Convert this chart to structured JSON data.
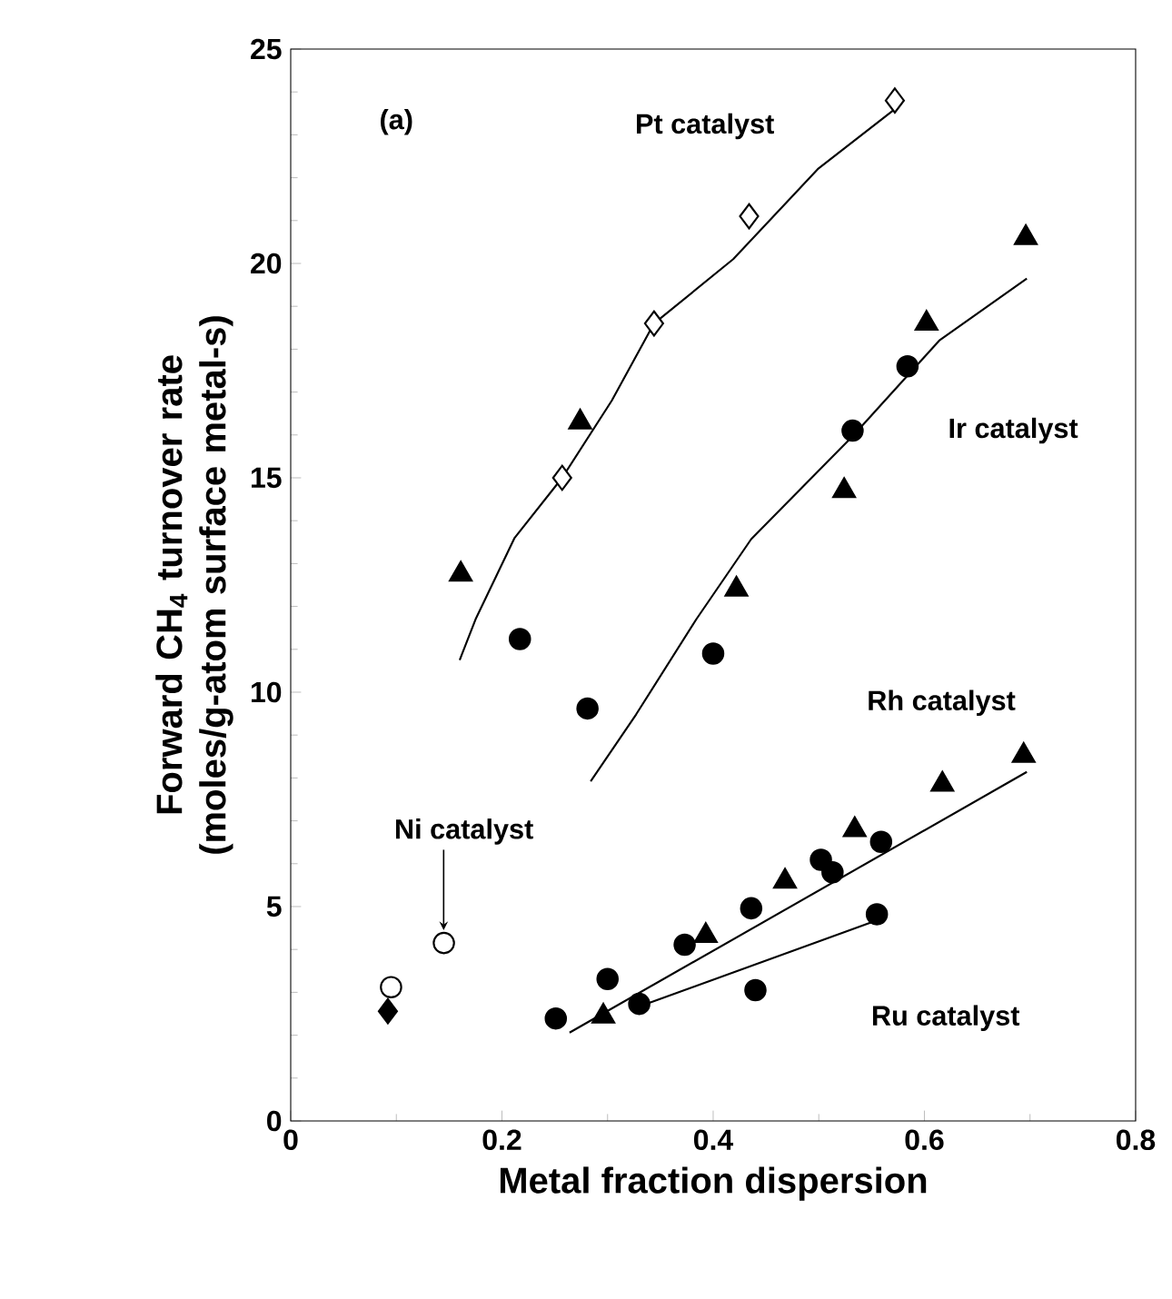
{
  "chart_data": {
    "type": "scatter",
    "xlabel": "Metal fraction dispersion",
    "ylabel": "Forward CH$_{4}$ turnover rate (moles/g-atom surface metal-s)",
    "xlim": [
      0,
      0.8
    ],
    "ylim": [
      0,
      25
    ],
    "xticks": [
      0,
      0.2,
      0.4,
      0.6,
      0.8
    ],
    "yticks": [
      0,
      5,
      10,
      15,
      20,
      25
    ],
    "series": [
      {
        "type": "line",
        "marker": "none",
        "color": "#000000",
        "x": [
          0.16,
          0.175,
          0.212,
          0.257,
          0.304,
          0.344,
          0.419,
          0.499,
          0.572
        ],
        "values": [
          10.75,
          11.7,
          13.6,
          15.0,
          16.8,
          18.6,
          20.1,
          22.2,
          23.6
        ]
      },
      {
        "type": "line",
        "marker": "none",
        "color": "#000000",
        "x": [
          0.284,
          0.327,
          0.384,
          0.436,
          0.532,
          0.614,
          0.697
        ],
        "values": [
          7.92,
          9.48,
          11.7,
          13.57,
          15.97,
          18.2,
          19.65
        ]
      },
      {
        "type": "line",
        "marker": "none",
        "color": "#000000",
        "x": [
          0.264,
          0.697
        ],
        "values": [
          2.06,
          8.14
        ]
      },
      {
        "type": "line",
        "marker": "none",
        "color": "#000000",
        "x": [
          0.33,
          0.554
        ],
        "values": [
          2.67,
          4.67
        ]
      },
      {
        "type": "scatter",
        "marker": "diamond",
        "color": "#ffffff",
        "x": [
          0.572,
          0.434,
          0.344,
          0.257
        ],
        "values": [
          23.8,
          21.1,
          18.6,
          15.0
        ]
      },
      {
        "type": "scatter",
        "marker": "triangle",
        "color": "#000000",
        "x": [
          0.696,
          0.602,
          0.274,
          0.161,
          0.524,
          0.422,
          0.296,
          0.393,
          0.468,
          0.534,
          0.617,
          0.694
        ],
        "values": [
          20.6,
          18.6,
          16.3,
          12.75,
          14.7,
          12.4,
          2.44,
          4.32,
          5.59,
          6.79,
          7.85,
          8.52
        ]
      },
      {
        "type": "scatter",
        "marker": "circle",
        "color": "#000000",
        "x": [
          0.584,
          0.532,
          0.217,
          0.281,
          0.4,
          0.251,
          0.3,
          0.33,
          0.373,
          0.436,
          0.502,
          0.513,
          0.559,
          0.555,
          0.44
        ],
        "values": [
          17.6,
          16.1,
          11.24,
          9.62,
          10.9,
          2.39,
          3.31,
          2.73,
          4.11,
          4.96,
          6.09,
          5.8,
          6.51,
          4.82,
          3.05
        ]
      },
      {
        "type": "scatter",
        "marker": "circle",
        "color": "#ffffff",
        "x": [
          0.145,
          0.095
        ],
        "values": [
          4.15,
          3.12
        ]
      },
      {
        "type": "scatter",
        "marker": "diamond",
        "color": "#000000",
        "x": [
          0.092
        ],
        "values": [
          2.56
        ]
      }
    ],
    "annotations": [
      "(a)",
      "Pt catalyst",
      "Ir catalyst",
      "Rh catalyst",
      "Ru catalyst",
      "Ni catalyst"
    ]
  }
}
